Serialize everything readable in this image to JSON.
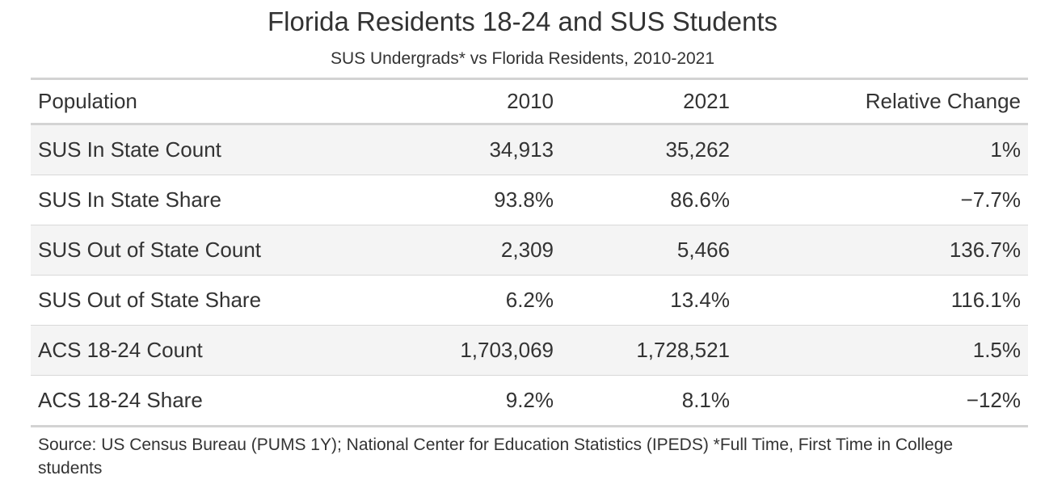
{
  "title": "Florida Residents 18-24 and SUS Students",
  "subtitle": "SUS Undergrads* vs Florida Residents, 2010-2021",
  "columns": [
    "Population",
    "2010",
    "2021",
    "Relative Change"
  ],
  "rows": [
    {
      "population": "SUS In State Count",
      "y2010": "34,913",
      "y2021": "35,262",
      "change": "1%"
    },
    {
      "population": "SUS In State Share",
      "y2010": "93.8%",
      "y2021": "86.6%",
      "change": "−7.7%"
    },
    {
      "population": "SUS Out of State Count",
      "y2010": "2,309",
      "y2021": "5,466",
      "change": "136.7%"
    },
    {
      "population": "SUS Out of State Share",
      "y2010": "6.2%",
      "y2021": "13.4%",
      "change": "116.1%"
    },
    {
      "population": "ACS 18-24 Count",
      "y2010": "1,703,069",
      "y2021": "1,728,521",
      "change": "1.5%"
    },
    {
      "population": "ACS 18-24 Share",
      "y2010": "9.2%",
      "y2021": "8.1%",
      "change": "−12%"
    }
  ],
  "source": "Source: US Census Bureau (PUMS 1Y); National Center for Education Statistics (IPEDS) *Full Time, First Time in College students",
  "colors": {
    "text": "#333333",
    "stripe": "#f4f4f4",
    "rule": "#d3d3d3"
  }
}
